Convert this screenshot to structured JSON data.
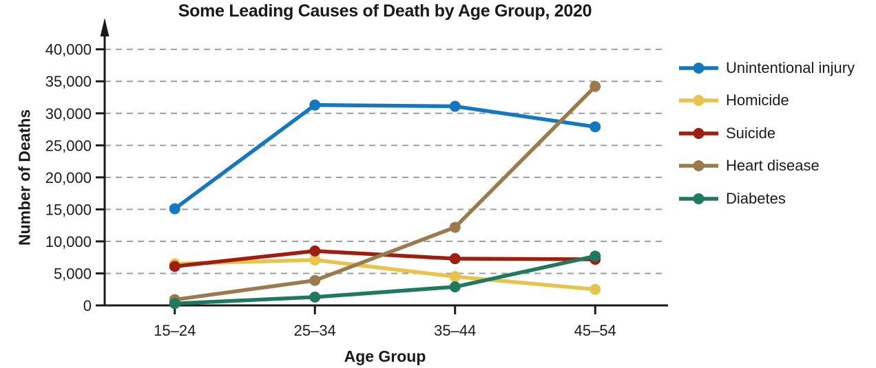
{
  "chart_data": {
    "type": "line",
    "title": "Some Leading Causes of Death by Age Group, 2020",
    "xlabel": "Age Group",
    "ylabel": "Number of Deaths",
    "categories": [
      "15–24",
      "25–34",
      "35–44",
      "45–54"
    ],
    "ylim": [
      0,
      40000
    ],
    "y_tick_step": 5000,
    "y_tick_labels": [
      "0",
      "5,000",
      "10,000",
      "15,000",
      "20,000",
      "25,000",
      "30,000",
      "35,000",
      "40,000"
    ],
    "grid": "horizontal-dashed",
    "legend_position": "right",
    "series": [
      {
        "name": "Unintentional injury",
        "color": "#1478be",
        "values": [
          15100,
          31300,
          31100,
          27900
        ]
      },
      {
        "name": "Homicide",
        "color": "#e6c44e",
        "values": [
          6500,
          7100,
          4500,
          2500
        ]
      },
      {
        "name": "Suicide",
        "color": "#9e1e12",
        "values": [
          6100,
          8500,
          7300,
          7200
        ]
      },
      {
        "name": "Heart disease",
        "color": "#9b7b4d",
        "values": [
          900,
          3900,
          12200,
          34200
        ]
      },
      {
        "name": "Diabetes",
        "color": "#20795e",
        "values": [
          300,
          1300,
          2900,
          7700
        ]
      }
    ],
    "style_colors": {
      "axis": "#1a1a1a",
      "gridline": "#9c9c9c",
      "text": "#1a1a1a",
      "background": "#ffffff"
    }
  }
}
